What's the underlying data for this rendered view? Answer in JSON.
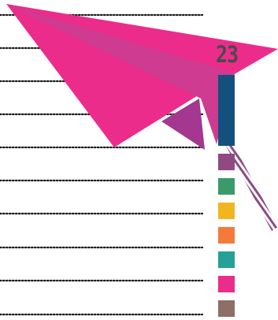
{
  "page": {
    "number": "23"
  },
  "colors": {
    "plane_main": "#ec2c8a",
    "plane_wing": "#cf3b90",
    "plane_fold": "#a4378f",
    "trail": "#8e4a86",
    "dots": "#1a1a1a",
    "bar_top": "#13507e"
  },
  "swatches": [
    {
      "name": "purple",
      "color": "#8f4a82"
    },
    {
      "name": "green",
      "color": "#3a9a6a"
    },
    {
      "name": "yellow",
      "color": "#f1b51f"
    },
    {
      "name": "orange",
      "color": "#f47a3b"
    },
    {
      "name": "teal",
      "color": "#25a196"
    },
    {
      "name": "pink",
      "color": "#ec2c8a"
    },
    {
      "name": "brown",
      "color": "#8e6e67"
    }
  ]
}
